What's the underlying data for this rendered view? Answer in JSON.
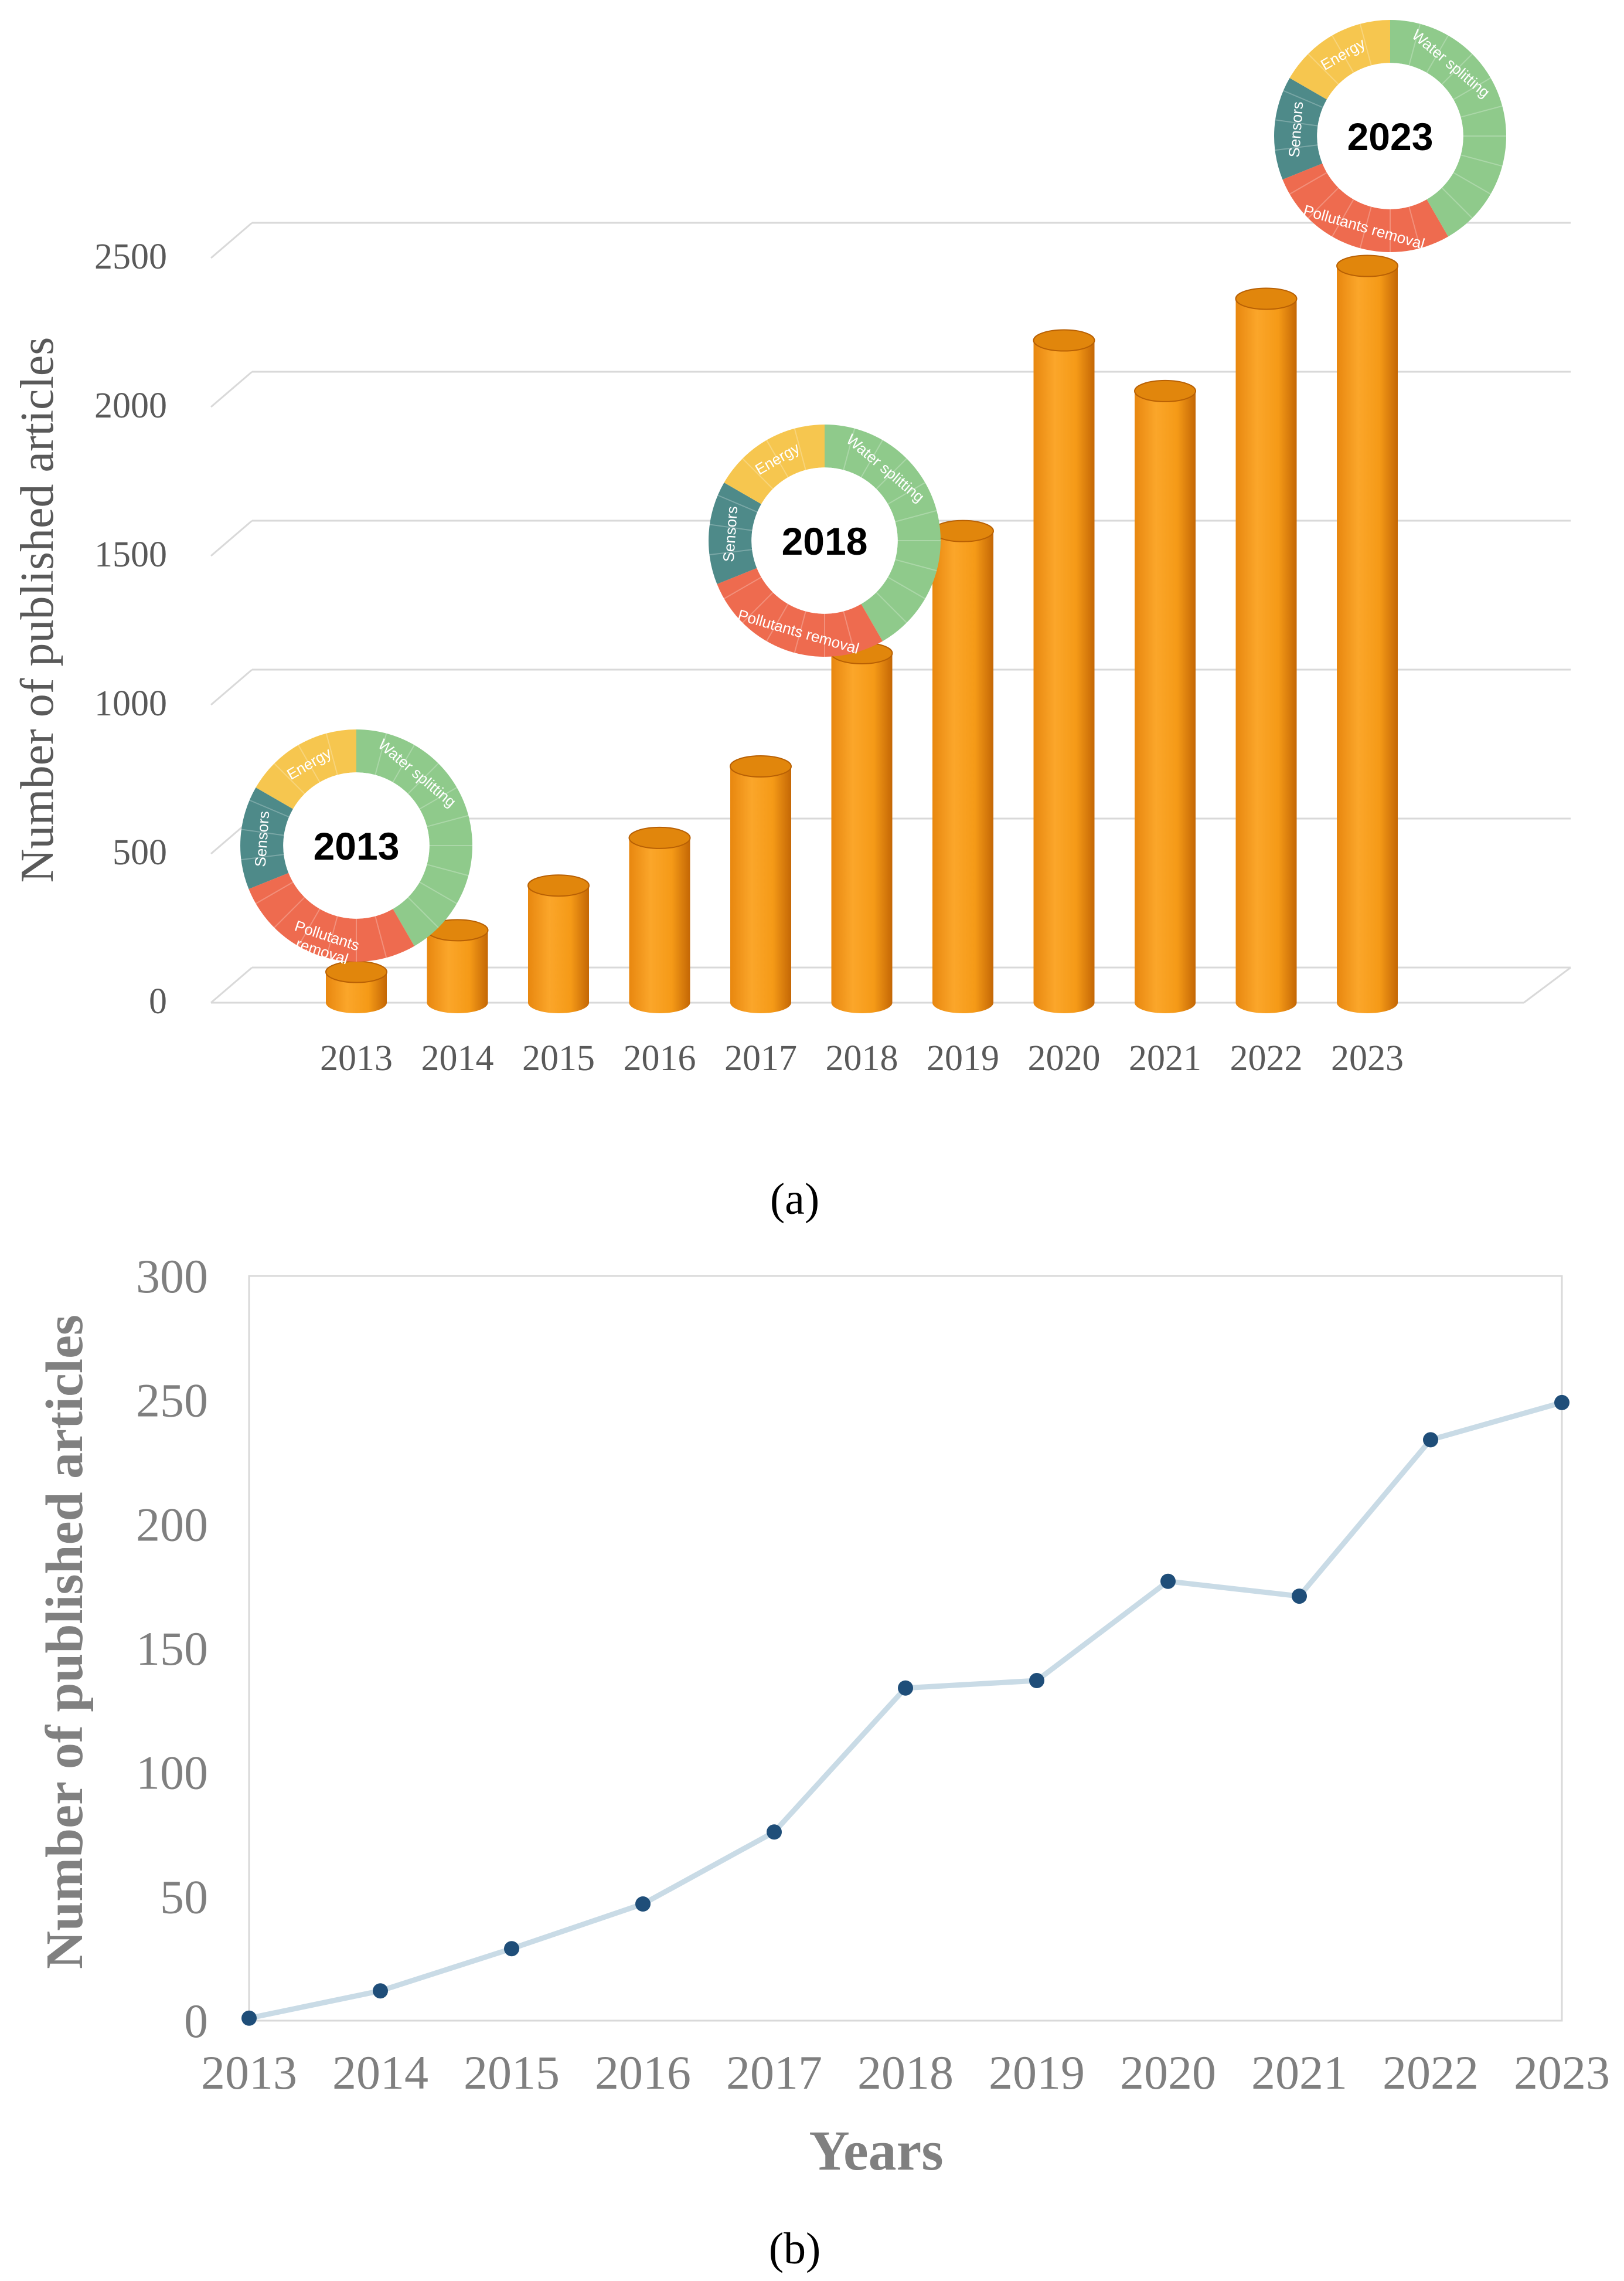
{
  "colors": {
    "bar_front": "#f7a21d",
    "bar_side": "#c96a06",
    "bar_top": "#e1860c",
    "grid": "#d9d9d9",
    "line": "#c9dbe6",
    "marker": "#1f4e79",
    "energy": "#f6c64f",
    "water": "#8fca8b",
    "pollutants": "#ee6b4f",
    "sensors": "#4e8a89"
  },
  "donut_segments": {
    "energy": "Energy",
    "water": "Water splitting",
    "pollutants": "Pollutants removal",
    "pollutants_line1": "Pollutants",
    "pollutants_line2": "removal",
    "sensors": "Sensors"
  },
  "donuts": [
    {
      "year_label": "2013"
    },
    {
      "year_label": "2018"
    },
    {
      "year_label": "2023"
    }
  ],
  "panels": {
    "a": "(a)",
    "b": "(b)"
  },
  "chart_data": [
    {
      "type": "bar",
      "panel": "a",
      "categories": [
        "2013",
        "2014",
        "2015",
        "2016",
        "2017",
        "2018",
        "2019",
        "2020",
        "2021",
        "2022",
        "2023"
      ],
      "values": [
        60,
        200,
        350,
        510,
        750,
        1130,
        1540,
        2180,
        2010,
        2320,
        2430
      ],
      "title": "",
      "xlabel": "",
      "ylabel": "Number of published articles",
      "ylim": [
        0,
        2500
      ],
      "yticks": [
        "0",
        "500",
        "1000",
        "1500",
        "2000",
        "2500"
      ],
      "grid": true
    },
    {
      "type": "line",
      "panel": "b",
      "categories": [
        "2013",
        "2014",
        "2015",
        "2016",
        "2017",
        "2018",
        "2019",
        "2020",
        "2021",
        "2022",
        "2023"
      ],
      "values": [
        1,
        12,
        29,
        47,
        76,
        134,
        137,
        177,
        171,
        234,
        249
      ],
      "title": "",
      "xlabel": "Years",
      "ylabel": "Number of published articles",
      "ylim": [
        0,
        300
      ],
      "yticks": [
        "0",
        "50",
        "100",
        "150",
        "200",
        "250",
        "300"
      ],
      "grid": false
    }
  ]
}
